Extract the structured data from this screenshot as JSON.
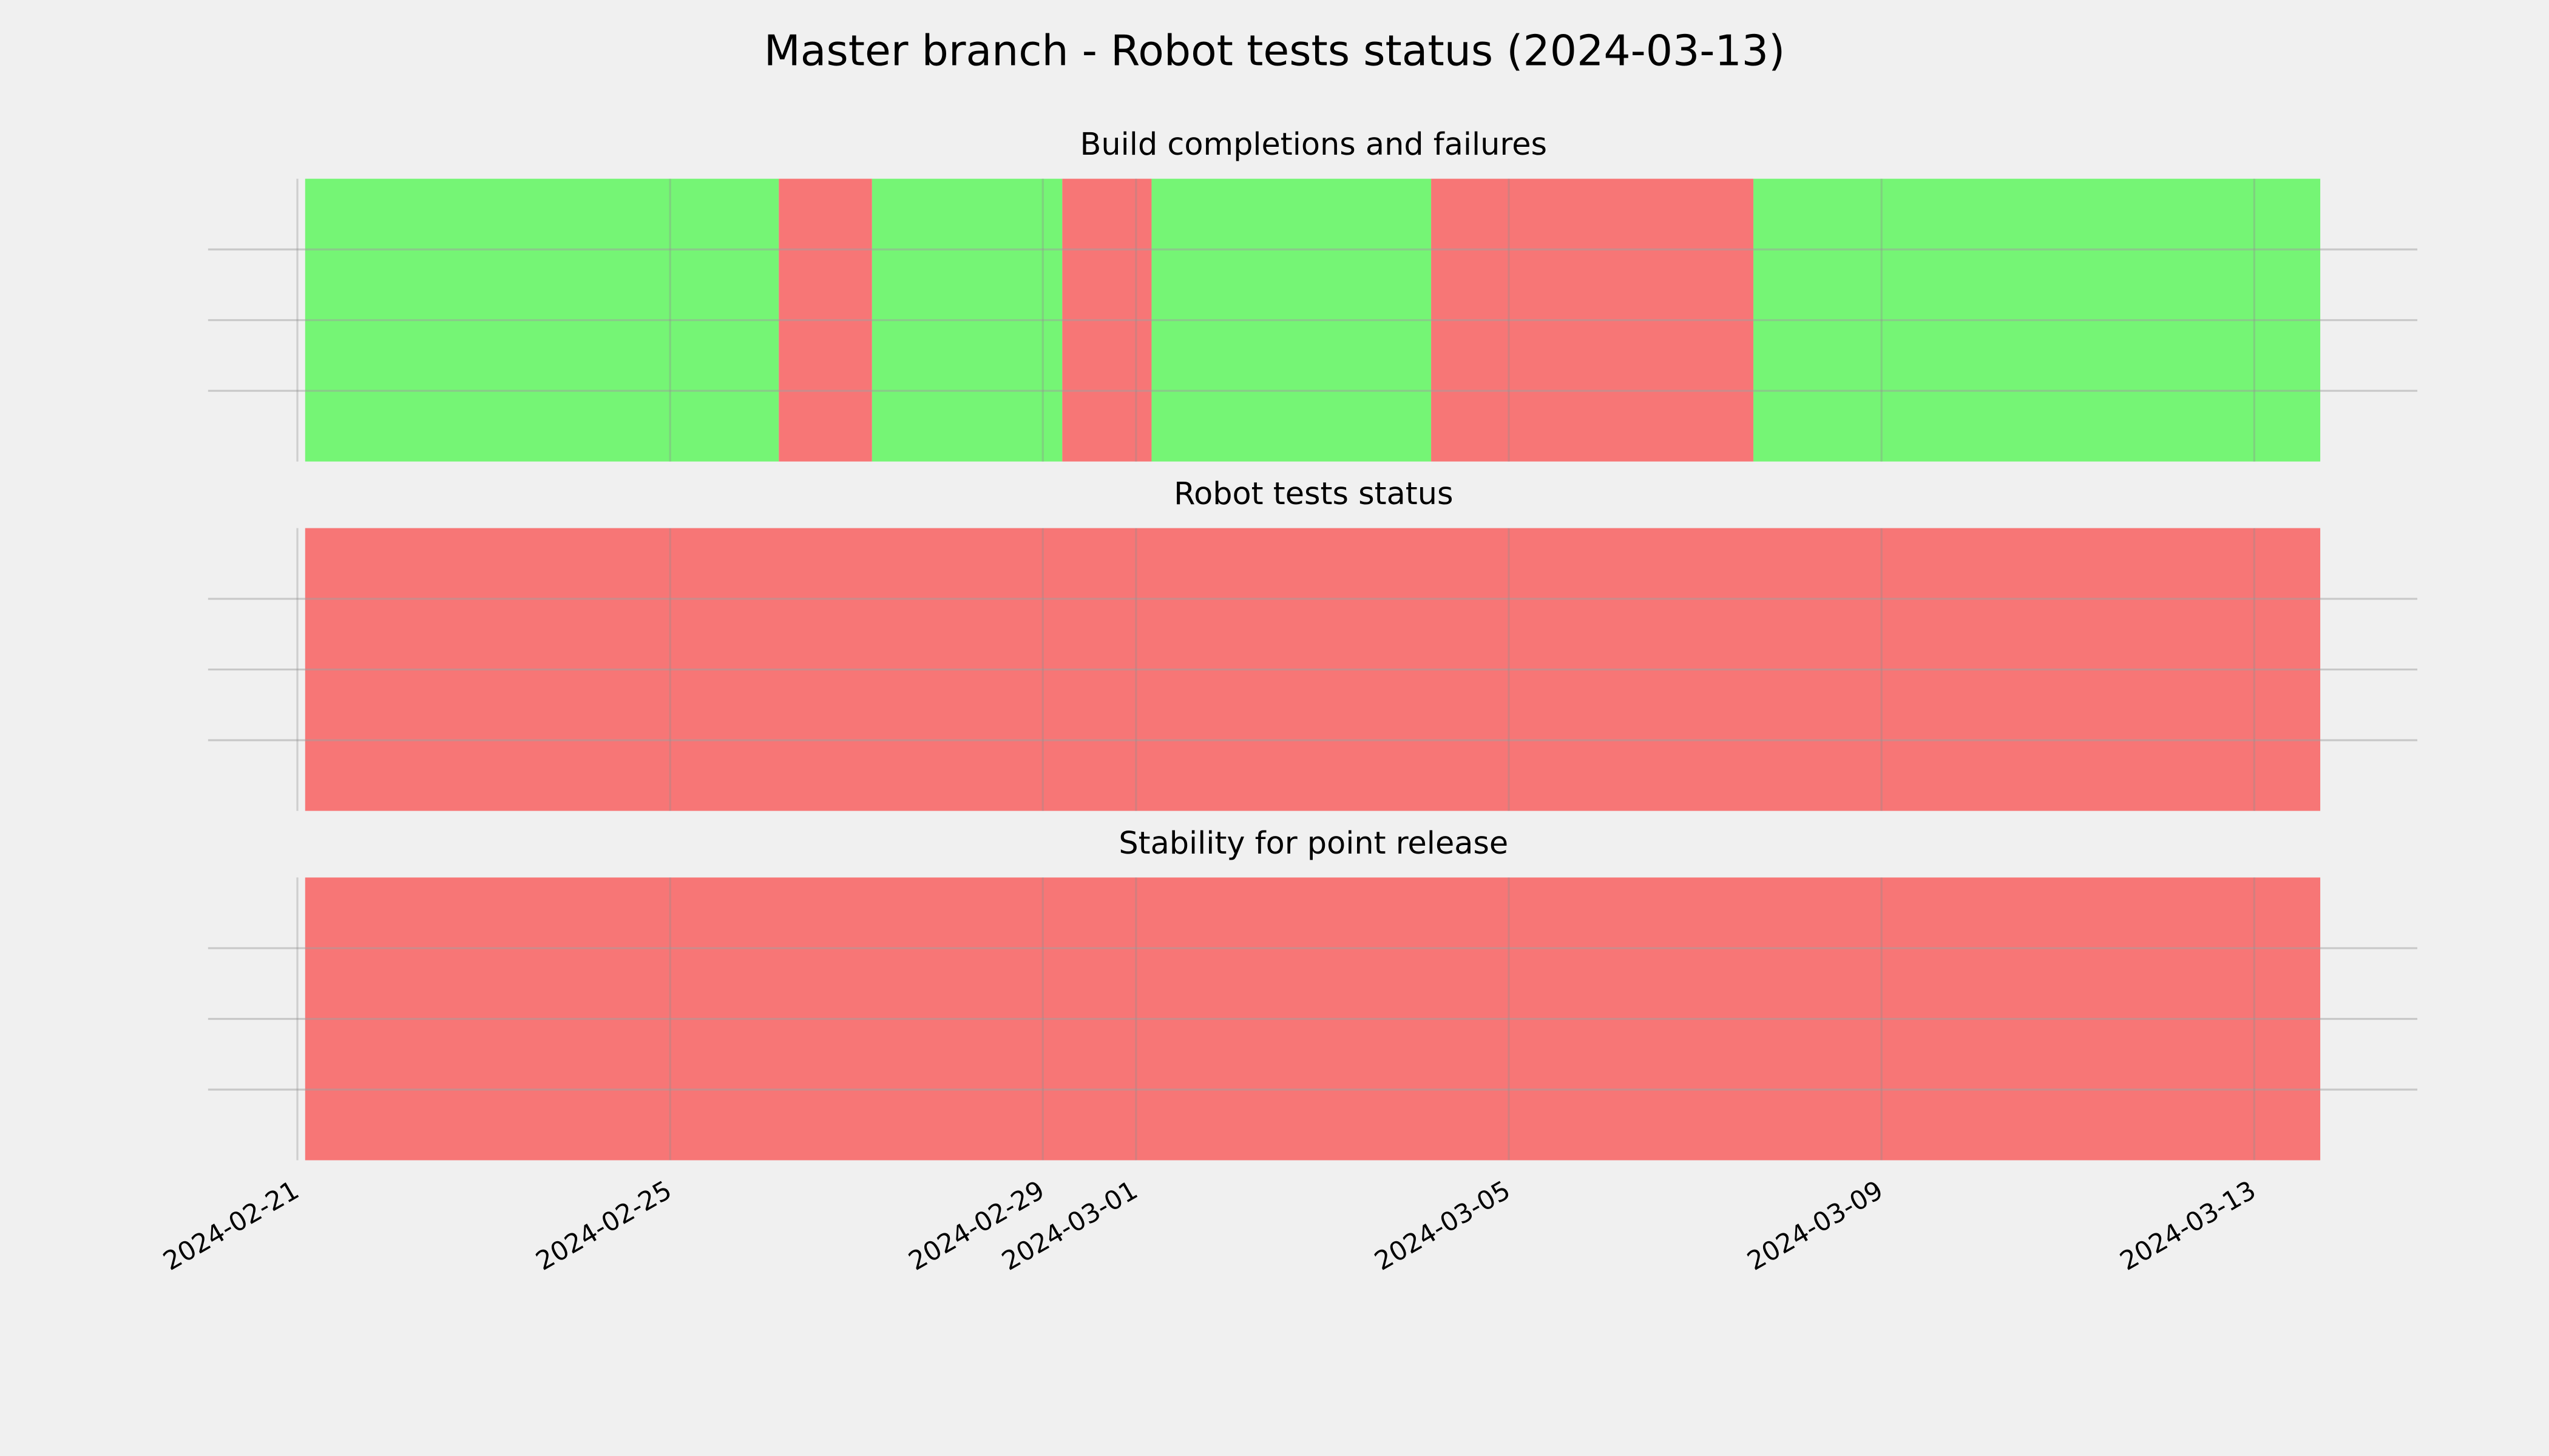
{
  "title": "Master branch - Robot tests status (2024-03-13)",
  "chart_data": [
    {
      "type": "timeline",
      "title": "Build completions and failures",
      "xlim": [
        "2024-02-20 01:00",
        "2024-03-14 18:00"
      ],
      "ylim": [
        0,
        1
      ],
      "yticks": [
        0.25,
        0.5,
        0.75
      ],
      "grid": true,
      "xticks": [
        "2024-02-21",
        "2024-02-25",
        "2024-02-29",
        "2024-03-01",
        "2024-03-05",
        "2024-03-09",
        "2024-03-13"
      ],
      "spans": [
        {
          "start": "2024-02-21 02:00",
          "end": "2024-02-26 04:00",
          "color": "#75f575"
        },
        {
          "start": "2024-02-26 04:00",
          "end": "2024-02-27 04:00",
          "color": "#f77676"
        },
        {
          "start": "2024-02-27 04:00",
          "end": "2024-02-29 05:00",
          "color": "#75f575"
        },
        {
          "start": "2024-02-29 05:00",
          "end": "2024-03-01 04:00",
          "color": "#f77676"
        },
        {
          "start": "2024-03-01 04:00",
          "end": "2024-03-04 04:00",
          "color": "#75f575"
        },
        {
          "start": "2024-03-04 04:00",
          "end": "2024-03-07 15:00",
          "color": "#f77676"
        },
        {
          "start": "2024-03-07 15:00",
          "end": "2024-03-13 17:00",
          "color": "#75f575"
        }
      ]
    },
    {
      "type": "timeline",
      "title": "Robot tests status",
      "xlim": [
        "2024-02-20 01:00",
        "2024-03-14 18:00"
      ],
      "ylim": [
        0,
        1
      ],
      "yticks": [
        0.25,
        0.5,
        0.75
      ],
      "grid": true,
      "xticks": [
        "2024-02-21",
        "2024-02-25",
        "2024-02-29",
        "2024-03-01",
        "2024-03-05",
        "2024-03-09",
        "2024-03-13"
      ],
      "spans": [
        {
          "start": "2024-02-21 02:00",
          "end": "2024-03-13 17:00",
          "color": "#f77676"
        }
      ]
    },
    {
      "type": "timeline",
      "title": "Stability for point release",
      "xlim": [
        "2024-02-20 01:00",
        "2024-03-14 18:00"
      ],
      "ylim": [
        0,
        1
      ],
      "yticks": [
        0.25,
        0.5,
        0.75
      ],
      "grid": true,
      "xticks": [
        "2024-02-21",
        "2024-02-25",
        "2024-02-29",
        "2024-03-01",
        "2024-03-05",
        "2024-03-09",
        "2024-03-13"
      ],
      "spans": [
        {
          "start": "2024-02-21 02:00",
          "end": "2024-03-13 17:00",
          "color": "#f77676"
        }
      ]
    }
  ]
}
